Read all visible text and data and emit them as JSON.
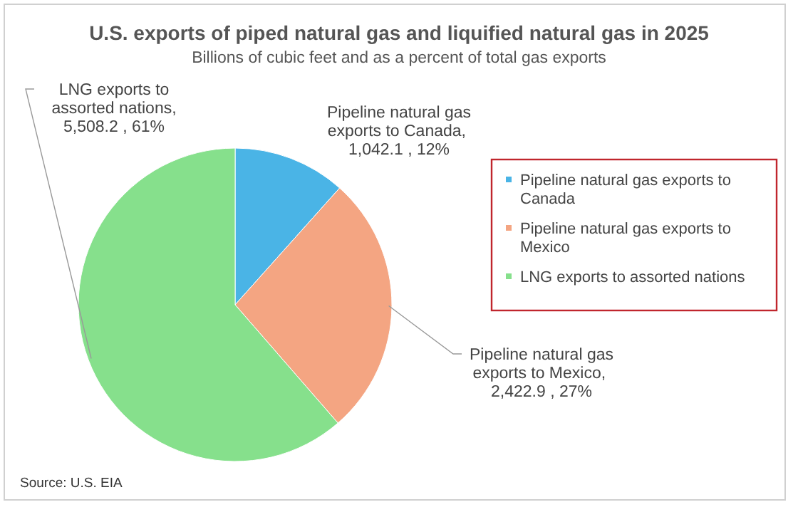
{
  "chart_data": {
    "type": "pie",
    "title": "U.S. exports of piped natural gas and liquified natural gas in 2025",
    "subtitle": "Billions of cubic feet and as a percent of total gas exports",
    "categories": [
      "Pipeline natural gas exports to Canada",
      "Pipeline natural gas exports to Mexico",
      "LNG exports to assorted nations"
    ],
    "values": [
      1042.1,
      2422.9,
      5508.2
    ],
    "colors": [
      "#4ab4e6",
      "#f4a582",
      "#86e08c"
    ],
    "value_labels": [
      ",  1,042.1 , 12%",
      ",  2,422.9 , 27%",
      ", 5,508.2 , 61%"
    ],
    "legend": "right",
    "annotations": [
      "Source: U.S. EIA"
    ]
  }
}
